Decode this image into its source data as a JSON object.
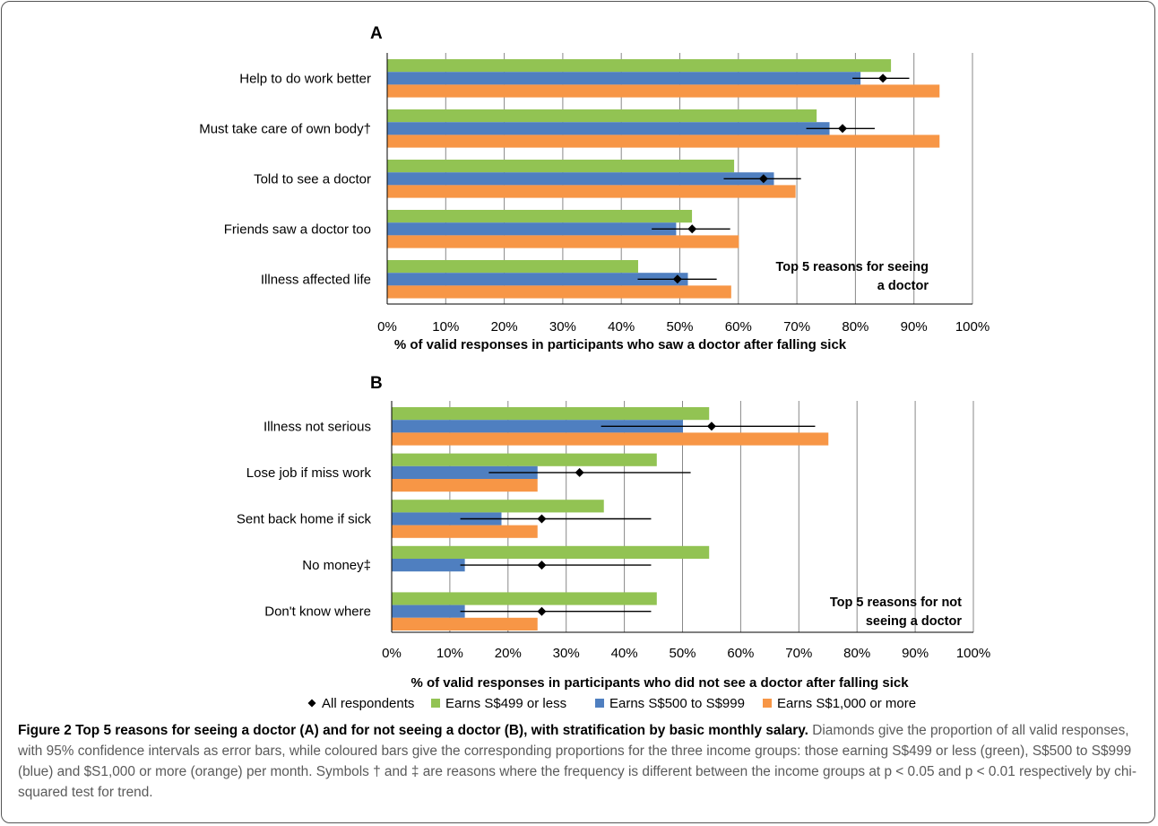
{
  "colors": {
    "green": "#92c353",
    "blue": "#4f7fc0",
    "orange": "#f79646",
    "grid": "#888888",
    "marker": "#000000"
  },
  "legend": {
    "items": [
      {
        "label": "All respondents",
        "kind": "diamond",
        "color": "#000000"
      },
      {
        "label": "Earns S$499 or less",
        "kind": "square",
        "color": "#92c353"
      },
      {
        "label": "Earns S$500 to S$999",
        "kind": "square",
        "color": "#4f7fc0"
      },
      {
        "label": "Earns S$1,000 or more",
        "kind": "square",
        "color": "#f79646"
      }
    ]
  },
  "caption": {
    "title": "Figure 2 Top 5 reasons for seeing a doctor (A) and for not seeing a doctor (B), with stratification by basic monthly salary.",
    "body": "Diamonds give the proportion of all valid responses, with 95% confidence intervals as error bars, while coloured bars give the corresponding proportions for the three income groups: those earning S$499 or less (green), S$500 to S$999 (blue) and $S1,000 or more (orange) per month. Symbols † and ‡ are reasons where the frequency is different between the income groups at p < 0.05 and p < 0.01 respectively by chi-squared test for trend."
  },
  "chart_data": [
    {
      "panel": "A",
      "type": "bar",
      "orientation": "horizontal",
      "xlabel": "% of valid responses in participants who saw a doctor after falling sick",
      "xlim": [
        0,
        100
      ],
      "xticks": [
        "0%",
        "10%",
        "20%",
        "30%",
        "40%",
        "50%",
        "60%",
        "70%",
        "80%",
        "90%",
        "100%"
      ],
      "grid": true,
      "annotation": [
        "Top 5 reasons for seeing",
        "a doctor"
      ],
      "categories": [
        "Help to do work better",
        "Must take care of own body†",
        "Told to see a doctor",
        "Friends saw a doctor too",
        "Illness affected life"
      ],
      "series": [
        {
          "name": "Earns S$499 or less",
          "color": "#92c353",
          "values": [
            86,
            73.3,
            59.2,
            52,
            42.8
          ]
        },
        {
          "name": "Earns S$500 to S$999",
          "color": "#4f7fc0",
          "values": [
            80.8,
            75.5,
            66,
            49.3,
            51.3
          ]
        },
        {
          "name": "Earns S$1,000 or more",
          "color": "#f79646",
          "values": [
            94.3,
            94.3,
            69.7,
            60,
            58.7
          ]
        }
      ],
      "all_respondents": [
        {
          "value": 84.7,
          "ci": [
            79.5,
            89.2
          ]
        },
        {
          "value": 77.8,
          "ci": [
            71.6,
            83.3
          ]
        },
        {
          "value": 64.3,
          "ci": [
            57.5,
            70.7
          ]
        },
        {
          "value": 52.1,
          "ci": [
            45.2,
            58.6
          ]
        },
        {
          "value": 49.6,
          "ci": [
            42.8,
            56.3
          ]
        }
      ]
    },
    {
      "panel": "B",
      "type": "bar",
      "orientation": "horizontal",
      "xlabel": "% of valid responses in participants who did not see a doctor after falling sick",
      "xlim": [
        0,
        100
      ],
      "xticks": [
        "0%",
        "10%",
        "20%",
        "30%",
        "40%",
        "50%",
        "60%",
        "70%",
        "80%",
        "90%",
        "100%"
      ],
      "grid": true,
      "annotation": [
        "Top 5 reasons for not",
        "seeing a doctor"
      ],
      "categories": [
        "Illness not serious",
        "Lose job if miss work",
        "Sent back home if sick",
        "No money‡",
        "Don't know where"
      ],
      "series": [
        {
          "name": "Earns S$499 or less",
          "color": "#92c353",
          "values": [
            54.5,
            45.5,
            36.4,
            54.5,
            45.5
          ]
        },
        {
          "name": "Earns S$500 to S$999",
          "color": "#4f7fc0",
          "values": [
            50,
            25,
            18.8,
            12.5,
            12.5
          ]
        },
        {
          "name": "Earns S$1,000 or more",
          "color": "#f79646",
          "values": [
            75,
            25,
            25,
            0,
            25
          ]
        }
      ],
      "all_respondents": [
        {
          "value": 55,
          "ci": [
            36,
            72.8
          ]
        },
        {
          "value": 32.3,
          "ci": [
            16.7,
            51.4
          ]
        },
        {
          "value": 25.8,
          "ci": [
            11.8,
            44.6
          ]
        },
        {
          "value": 25.8,
          "ci": [
            11.8,
            44.6
          ]
        },
        {
          "value": 25.8,
          "ci": [
            11.8,
            44.6
          ]
        }
      ]
    }
  ]
}
